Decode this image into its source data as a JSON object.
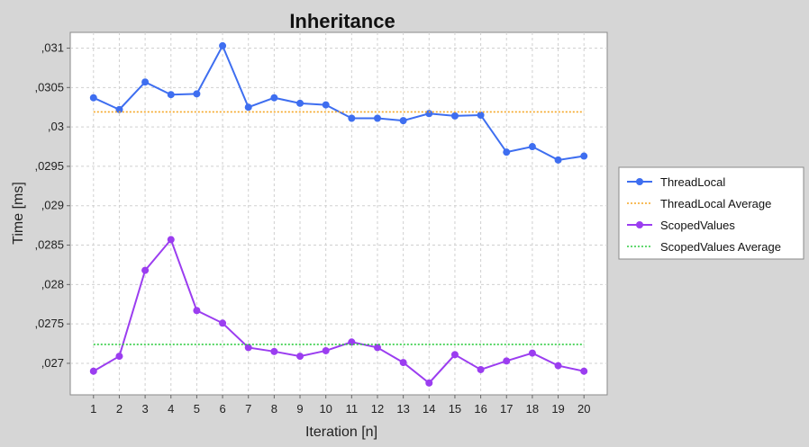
{
  "chart_data": {
    "type": "line",
    "title": "Inheritance",
    "xlabel": "Iteration [n]",
    "ylabel": "Time [ms]",
    "x": [
      1,
      2,
      3,
      4,
      5,
      6,
      7,
      8,
      9,
      10,
      11,
      12,
      13,
      14,
      15,
      16,
      17,
      18,
      19,
      20
    ],
    "ylim": [
      0.0266,
      0.0312
    ],
    "yticks": [
      0.027,
      0.0275,
      0.028,
      0.0285,
      0.029,
      0.0295,
      0.03,
      0.0305,
      0.031
    ],
    "ytick_labels": [
      ",027",
      ",0275",
      ",028",
      ",0285",
      ",029",
      ",0295",
      ",03",
      ",0305",
      ",031"
    ],
    "grid": true,
    "legend_position": "right",
    "series": [
      {
        "name": "ThreadLocal",
        "style": "line-markers",
        "color": "#3e6ef0",
        "values": [
          0.03037,
          0.03022,
          0.03057,
          0.03041,
          0.03042,
          0.03103,
          0.03025,
          0.03037,
          0.0303,
          0.03028,
          0.03011,
          0.03011,
          0.03008,
          0.03017,
          0.03014,
          0.03015,
          0.02968,
          0.02975,
          0.02958,
          0.02963
        ]
      },
      {
        "name": "ThreadLocal Average",
        "style": "dashed",
        "color": "#f5a623",
        "values": [
          0.03019,
          0.03019,
          0.03019,
          0.03019,
          0.03019,
          0.03019,
          0.03019,
          0.03019,
          0.03019,
          0.03019,
          0.03019,
          0.03019,
          0.03019,
          0.03019,
          0.03019,
          0.03019,
          0.03019,
          0.03019,
          0.03019,
          0.03019
        ]
      },
      {
        "name": "ScopedValues",
        "style": "line-markers",
        "color": "#9b3df0",
        "values": [
          0.0269,
          0.02709,
          0.02818,
          0.02857,
          0.02767,
          0.02751,
          0.0272,
          0.02715,
          0.02709,
          0.02716,
          0.02727,
          0.0272,
          0.02701,
          0.02675,
          0.02711,
          0.02692,
          0.02703,
          0.02713,
          0.02697,
          0.0269
        ]
      },
      {
        "name": "ScopedValues Average",
        "style": "dashed",
        "color": "#2ecc40",
        "values": [
          0.02724,
          0.02724,
          0.02724,
          0.02724,
          0.02724,
          0.02724,
          0.02724,
          0.02724,
          0.02724,
          0.02724,
          0.02724,
          0.02724,
          0.02724,
          0.02724,
          0.02724,
          0.02724,
          0.02724,
          0.02724,
          0.02724,
          0.02724
        ]
      }
    ]
  }
}
